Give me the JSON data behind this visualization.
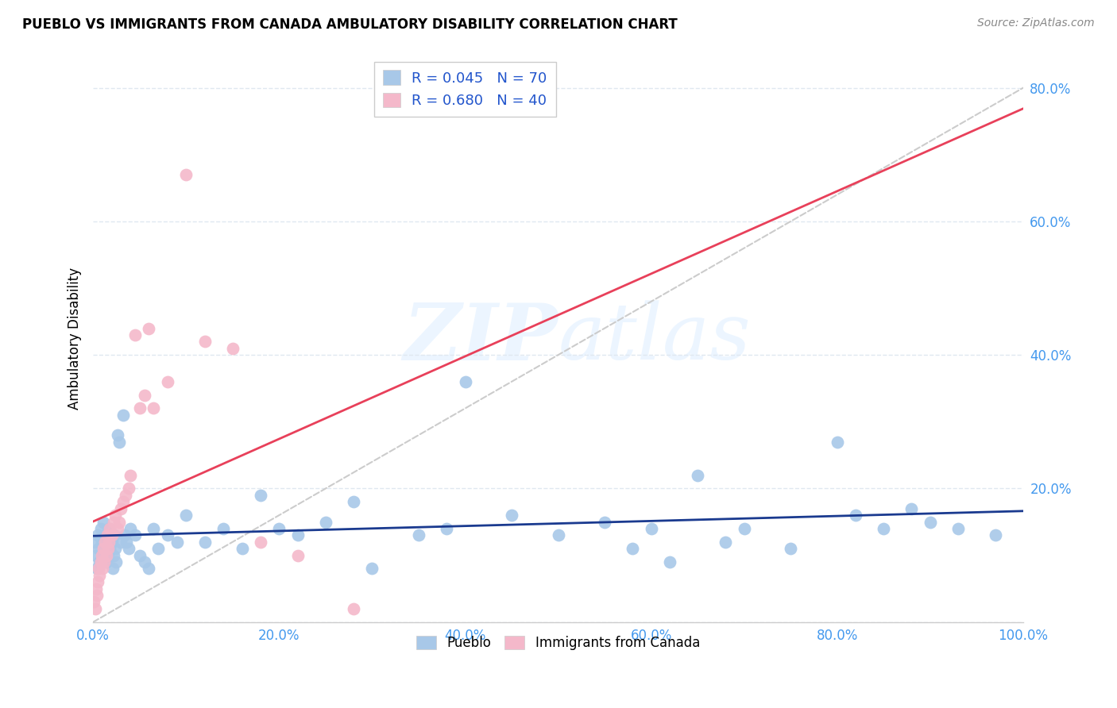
{
  "title": "PUEBLO VS IMMIGRANTS FROM CANADA AMBULATORY DISABILITY CORRELATION CHART",
  "source_text": "Source: ZipAtlas.com",
  "ylabel": "Ambulatory Disability",
  "xlim": [
    0.0,
    1.0
  ],
  "ylim": [
    0.0,
    0.85
  ],
  "xticks": [
    0.0,
    0.2,
    0.4,
    0.6,
    0.8,
    1.0
  ],
  "yticks": [
    0.0,
    0.2,
    0.4,
    0.6,
    0.8
  ],
  "xticklabels": [
    "0.0%",
    "20.0%",
    "40.0%",
    "60.0%",
    "80.0%",
    "100.0%"
  ],
  "yticklabels": [
    "",
    "20.0%",
    "40.0%",
    "60.0%",
    "80.0%"
  ],
  "pueblo_color": "#a8c8e8",
  "canada_color": "#f4b8ca",
  "pueblo_edge_color": "#7aaed4",
  "canada_edge_color": "#e898b0",
  "pueblo_line_color": "#1a3a8f",
  "canada_line_color": "#e8405a",
  "trendline_color": "#c8c8c8",
  "grid_color": "#e0e8f0",
  "pueblo_R": 0.045,
  "pueblo_N": 70,
  "canada_R": 0.68,
  "canada_N": 40,
  "watermark_text": "ZIPatlas",
  "pueblo_x": [
    0.002,
    0.003,
    0.004,
    0.005,
    0.006,
    0.007,
    0.008,
    0.009,
    0.01,
    0.011,
    0.012,
    0.013,
    0.014,
    0.015,
    0.016,
    0.017,
    0.018,
    0.019,
    0.02,
    0.021,
    0.022,
    0.023,
    0.024,
    0.025,
    0.026,
    0.028,
    0.03,
    0.032,
    0.034,
    0.036,
    0.038,
    0.04,
    0.045,
    0.05,
    0.055,
    0.06,
    0.065,
    0.07,
    0.08,
    0.09,
    0.1,
    0.12,
    0.14,
    0.16,
    0.18,
    0.2,
    0.22,
    0.25,
    0.28,
    0.3,
    0.35,
    0.38,
    0.4,
    0.45,
    0.5,
    0.55,
    0.58,
    0.6,
    0.62,
    0.65,
    0.68,
    0.7,
    0.75,
    0.8,
    0.82,
    0.85,
    0.88,
    0.9,
    0.93,
    0.97
  ],
  "pueblo_y": [
    0.12,
    0.1,
    0.08,
    0.13,
    0.11,
    0.09,
    0.14,
    0.12,
    0.1,
    0.15,
    0.11,
    0.13,
    0.09,
    0.12,
    0.1,
    0.14,
    0.11,
    0.13,
    0.12,
    0.08,
    0.1,
    0.13,
    0.11,
    0.09,
    0.28,
    0.27,
    0.12,
    0.31,
    0.13,
    0.12,
    0.11,
    0.14,
    0.13,
    0.1,
    0.09,
    0.08,
    0.14,
    0.11,
    0.13,
    0.12,
    0.16,
    0.12,
    0.14,
    0.11,
    0.19,
    0.14,
    0.13,
    0.15,
    0.18,
    0.08,
    0.13,
    0.14,
    0.36,
    0.16,
    0.13,
    0.15,
    0.11,
    0.14,
    0.09,
    0.22,
    0.12,
    0.14,
    0.11,
    0.27,
    0.16,
    0.14,
    0.17,
    0.15,
    0.14,
    0.13
  ],
  "canada_x": [
    0.001,
    0.002,
    0.003,
    0.004,
    0.005,
    0.006,
    0.007,
    0.008,
    0.009,
    0.01,
    0.011,
    0.012,
    0.013,
    0.014,
    0.015,
    0.016,
    0.017,
    0.018,
    0.02,
    0.022,
    0.024,
    0.026,
    0.028,
    0.03,
    0.032,
    0.035,
    0.038,
    0.04,
    0.045,
    0.05,
    0.055,
    0.06,
    0.065,
    0.08,
    0.1,
    0.12,
    0.15,
    0.18,
    0.22,
    0.28
  ],
  "canada_y": [
    0.03,
    0.02,
    0.05,
    0.04,
    0.06,
    0.08,
    0.07,
    0.09,
    0.1,
    0.08,
    0.11,
    0.09,
    0.12,
    0.1,
    0.13,
    0.11,
    0.12,
    0.14,
    0.13,
    0.15,
    0.16,
    0.14,
    0.15,
    0.17,
    0.18,
    0.19,
    0.2,
    0.22,
    0.43,
    0.32,
    0.34,
    0.44,
    0.32,
    0.36,
    0.67,
    0.42,
    0.41,
    0.12,
    0.1,
    0.02
  ]
}
